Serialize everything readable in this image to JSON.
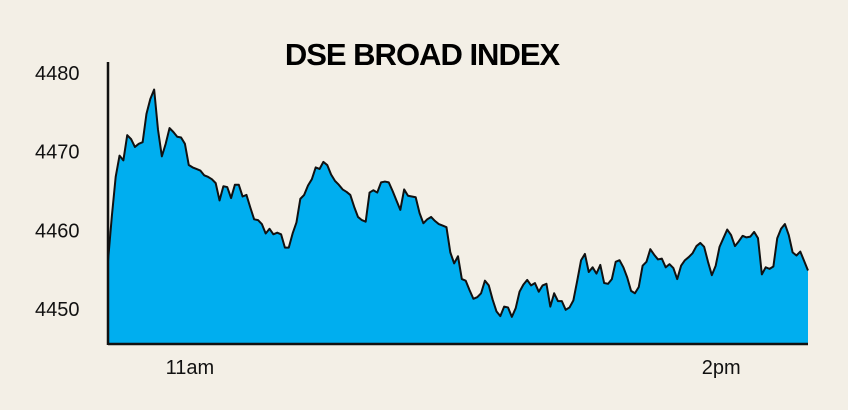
{
  "colors": {
    "background": "#f3efe6",
    "area_fill": "#00aeef",
    "line": "#111111",
    "text": "#111111"
  },
  "chart_data": {
    "type": "area",
    "title": "DSE BROAD INDEX",
    "xlabel": "",
    "ylabel": "",
    "ylim": [
      4446,
      4481
    ],
    "yticks": [
      4450,
      4460,
      4470,
      4480
    ],
    "ytick_labels": [
      "4450",
      "4460",
      "4470",
      "4480"
    ],
    "xticks": [
      {
        "label": "11am",
        "at": 0.117
      },
      {
        "label": "2pm",
        "at": 0.876
      }
    ],
    "grid": false,
    "legend": "none",
    "series": [
      {
        "values": [
          4456.1,
          4461.8,
          4466.8,
          4469.5,
          4468.9,
          4472.1,
          4471.6,
          4470.6,
          4471.0,
          4471.2,
          4474.8,
          4476.7,
          4477.9,
          4472.8,
          4469.4,
          4471.0,
          4473.0,
          4472.5,
          4471.9,
          4471.8,
          4471.0,
          4468.3,
          4468.0,
          4467.8,
          4467.6,
          4467.0,
          4466.8,
          4466.5,
          4466.0,
          4463.8,
          4465.6,
          4465.5,
          4464.1,
          4465.8,
          4465.8,
          4464.3,
          4464.5,
          4462.9,
          4461.4,
          4461.3,
          4460.8,
          4459.6,
          4460.2,
          4459.5,
          4459.7,
          4459.5,
          4457.8,
          4457.8,
          4459.6,
          4461.0,
          4464.0,
          4464.5,
          4465.7,
          4466.5,
          4468.0,
          4467.8,
          4468.7,
          4468.3,
          4467.1,
          4466.3,
          4465.8,
          4465.2,
          4464.9,
          4464.5,
          4463.0,
          4461.7,
          4461.3,
          4461.1,
          4464.8,
          4465.1,
          4464.8,
          4466.1,
          4466.2,
          4466.1,
          4465.0,
          4463.8,
          4462.6,
          4465.2,
          4464.4,
          4464.3,
          4464.2,
          4462.2,
          4460.9,
          4461.4,
          4461.7,
          4461.2,
          4460.8,
          4460.6,
          4460.4,
          4457.2,
          4455.8,
          4456.7,
          4453.8,
          4453.6,
          4452.4,
          4451.3,
          4451.5,
          4452.0,
          4453.6,
          4453.0,
          4451.2,
          4449.7,
          4449.1,
          4450.3,
          4450.2,
          4449.0,
          4450.1,
          4452.2,
          4453.1,
          4453.7,
          4453.0,
          4453.3,
          4452.2,
          4453.0,
          4453.2,
          4450.3,
          4452.0,
          4451.0,
          4451.0,
          4449.9,
          4450.2,
          4451.1,
          4453.6,
          4456.2,
          4457.0,
          4454.7,
          4455.3,
          4454.5,
          4455.6,
          4453.3,
          4453.2,
          4453.8,
          4456.0,
          4456.2,
          4455.3,
          4454.0,
          4452.3,
          4452.0,
          4452.8,
          4455.5,
          4456.0,
          4457.6,
          4456.9,
          4456.3,
          4456.4,
          4455.3,
          4455.7,
          4455.2,
          4453.8,
          4455.5,
          4456.2,
          4456.6,
          4457.1,
          4458.0,
          4458.4,
          4457.9,
          4456.0,
          4454.3,
          4455.5,
          4457.9,
          4459.0,
          4460.1,
          4459.4,
          4458.0,
          4458.6,
          4459.3,
          4459.1,
          4459.2,
          4459.8,
          4459.0,
          4454.4,
          4455.3,
          4455.1,
          4455.4,
          4459.0,
          4460.2,
          4460.8,
          4459.4,
          4457.2,
          4456.8,
          4457.3,
          4456.1,
          4454.9
        ]
      }
    ]
  }
}
